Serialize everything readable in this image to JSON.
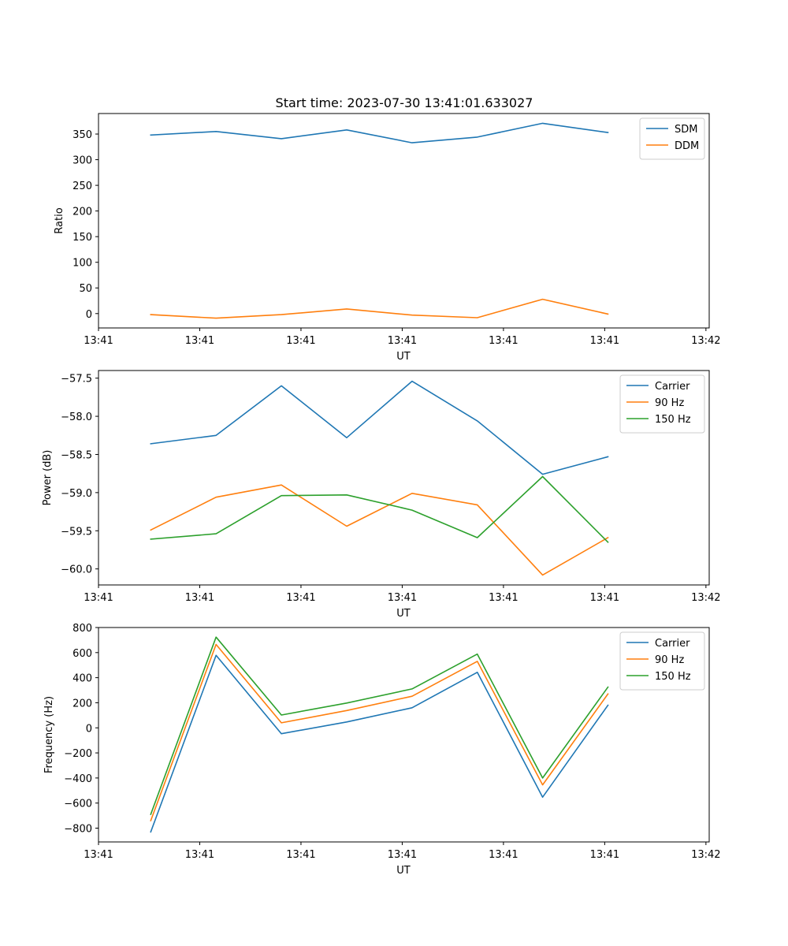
{
  "figure": {
    "title": "Start time: 2023-07-30 13:41:01.633027"
  },
  "colors": {
    "blue": "#1f77b4",
    "orange": "#ff7f0e",
    "green": "#2ca02c"
  },
  "chart_data": [
    {
      "type": "line",
      "title": "Start time: 2023-07-30 13:41:01.633027",
      "xlabel": "UT",
      "ylabel": "Ratio",
      "x": [
        1,
        2,
        3,
        4,
        5,
        6,
        7,
        8
      ],
      "xlim": [
        0.2,
        9.55
      ],
      "ylim": [
        -28,
        390
      ],
      "xticks": [
        0.2,
        1.75,
        3.3,
        4.85,
        6.4,
        7.95,
        9.5
      ],
      "xtick_labels": [
        "13:41",
        "13:41",
        "13:41",
        "13:41",
        "13:41",
        "13:41",
        "13:42"
      ],
      "yticks": [
        0,
        50,
        100,
        150,
        200,
        250,
        300,
        350
      ],
      "ytick_labels": [
        "0",
        "50",
        "100",
        "150",
        "200",
        "250",
        "300",
        "350"
      ],
      "legend_position": "top-right",
      "series": [
        {
          "name": "SDM",
          "color": "#1f77b4",
          "values": [
            348,
            355,
            341,
            358,
            333,
            344,
            371,
            353
          ]
        },
        {
          "name": "DDM",
          "color": "#ff7f0e",
          "values": [
            -2,
            -9,
            -2,
            9,
            -3,
            -8,
            28,
            -1
          ]
        }
      ]
    },
    {
      "type": "line",
      "title": "",
      "xlabel": "UT",
      "ylabel": "Power (dB)",
      "x": [
        1,
        2,
        3,
        4,
        5,
        6,
        7,
        8
      ],
      "xlim": [
        0.2,
        9.55
      ],
      "ylim": [
        -60.21,
        -57.4
      ],
      "xticks": [
        0.2,
        1.75,
        3.3,
        4.85,
        6.4,
        7.95,
        9.5
      ],
      "xtick_labels": [
        "13:41",
        "13:41",
        "13:41",
        "13:41",
        "13:41",
        "13:41",
        "13:42"
      ],
      "yticks": [
        -57.5,
        -58.0,
        -58.5,
        -59.0,
        -59.5,
        -60.0
      ],
      "ytick_labels": [
        "−57.5",
        "−58.0",
        "−58.5",
        "−59.0",
        "−59.5",
        "−60.0"
      ],
      "legend_position": "top-right",
      "series": [
        {
          "name": "Carrier",
          "color": "#1f77b4",
          "values": [
            -58.36,
            -58.25,
            -57.6,
            -58.28,
            -57.54,
            -58.06,
            -58.76,
            -58.53
          ]
        },
        {
          "name": "90 Hz",
          "color": "#ff7f0e",
          "values": [
            -59.49,
            -59.06,
            -58.9,
            -59.44,
            -59.01,
            -59.16,
            -60.08,
            -59.59
          ]
        },
        {
          "name": "150 Hz",
          "color": "#2ca02c",
          "values": [
            -59.61,
            -59.54,
            -59.04,
            -59.03,
            -59.23,
            -59.59,
            -58.79,
            -59.65
          ]
        }
      ]
    },
    {
      "type": "line",
      "title": "",
      "xlabel": "UT",
      "ylabel": "Frequency (Hz)",
      "x": [
        1,
        2,
        3,
        4,
        5,
        6,
        7,
        8
      ],
      "xlim": [
        0.2,
        9.55
      ],
      "ylim": [
        -910,
        800
      ],
      "xticks": [
        0.2,
        1.75,
        3.3,
        4.85,
        6.4,
        7.95,
        9.5
      ],
      "xtick_labels": [
        "13:41",
        "13:41",
        "13:41",
        "13:41",
        "13:41",
        "13:41",
        "13:42"
      ],
      "yticks": [
        800,
        600,
        400,
        200,
        0,
        -200,
        -400,
        -600,
        -800
      ],
      "ytick_labels": [
        "800",
        "600",
        "400",
        "200",
        "0",
        "−200",
        "−400",
        "−600",
        "−800"
      ],
      "legend_position": "top-right",
      "series": [
        {
          "name": "Carrier",
          "color": "#1f77b4",
          "values": [
            -830,
            578,
            -47,
            47,
            160,
            443,
            -553,
            180
          ]
        },
        {
          "name": "90 Hz",
          "color": "#ff7f0e",
          "values": [
            -740,
            665,
            40,
            138,
            252,
            530,
            -455,
            270
          ]
        },
        {
          "name": "150 Hz",
          "color": "#2ca02c",
          "values": [
            -690,
            723,
            102,
            198,
            310,
            588,
            -400,
            325
          ]
        }
      ]
    }
  ]
}
